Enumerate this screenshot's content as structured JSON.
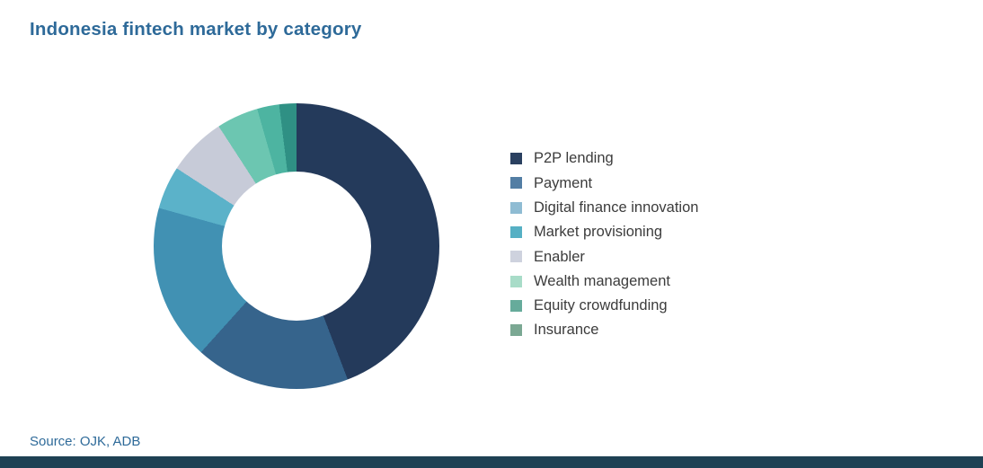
{
  "page": {
    "title": "Indonesia fintech market by category",
    "source": "Source: OJK, ADB",
    "title_color": "#2E6A99",
    "source_color": "#2E6A99",
    "footer_bar_color": "#1E4154",
    "background": "#FFFFFF",
    "legend_text_color": "#3C3C3C"
  },
  "chart_data": {
    "type": "pie",
    "variant": "donut",
    "title": "Indonesia fintech market by category",
    "direction": "clockwise",
    "start_angle_deg": 0,
    "inner_radius_ratio": 0.52,
    "legend_position": "right",
    "data_labels_shown": false,
    "categories": [
      "P2P lending",
      "Payment",
      "Digital finance innovation",
      "Market provisioning",
      "Enabler",
      "Wealth management",
      "Equity crowdfunding",
      "Insurance"
    ],
    "values_percent": [
      44.2,
      17.5,
      17.6,
      4.9,
      6.7,
      4.7,
      2.5,
      1.9
    ],
    "slices": [
      {
        "label": "P2P lending",
        "value_percent": 44.2,
        "start_deg": 0,
        "end_deg": 159,
        "color": "#243A5B",
        "legend_color": "#2A4060"
      },
      {
        "label": "Payment",
        "value_percent": 17.5,
        "start_deg": 159,
        "end_deg": 222,
        "color": "#36648C",
        "legend_color": "#537EA4"
      },
      {
        "label": "Digital finance innovation",
        "value_percent": 17.6,
        "start_deg": 222,
        "end_deg": 285.5,
        "color": "#4191B3",
        "legend_color": "#8FBCD3"
      },
      {
        "label": "Market provisioning",
        "value_percent": 4.9,
        "start_deg": 285.5,
        "end_deg": 303,
        "color": "#5BB2C9",
        "legend_color": "#56B0C4"
      },
      {
        "label": "Enabler",
        "value_percent": 6.7,
        "start_deg": 303,
        "end_deg": 327,
        "color": "#C7CBD8",
        "legend_color": "#CED2DE"
      },
      {
        "label": "Wealth management",
        "value_percent": 4.7,
        "start_deg": 327,
        "end_deg": 344,
        "color": "#6CC6B1",
        "legend_color": "#A8DCC8"
      },
      {
        "label": "Equity crowdfunding",
        "value_percent": 2.5,
        "start_deg": 344,
        "end_deg": 353,
        "color": "#4DB4A1",
        "legend_color": "#66AB9B"
      },
      {
        "label": "Insurance",
        "value_percent": 1.9,
        "start_deg": 353,
        "end_deg": 360,
        "color": "#2F9084",
        "legend_color": "#7BA893"
      }
    ]
  }
}
